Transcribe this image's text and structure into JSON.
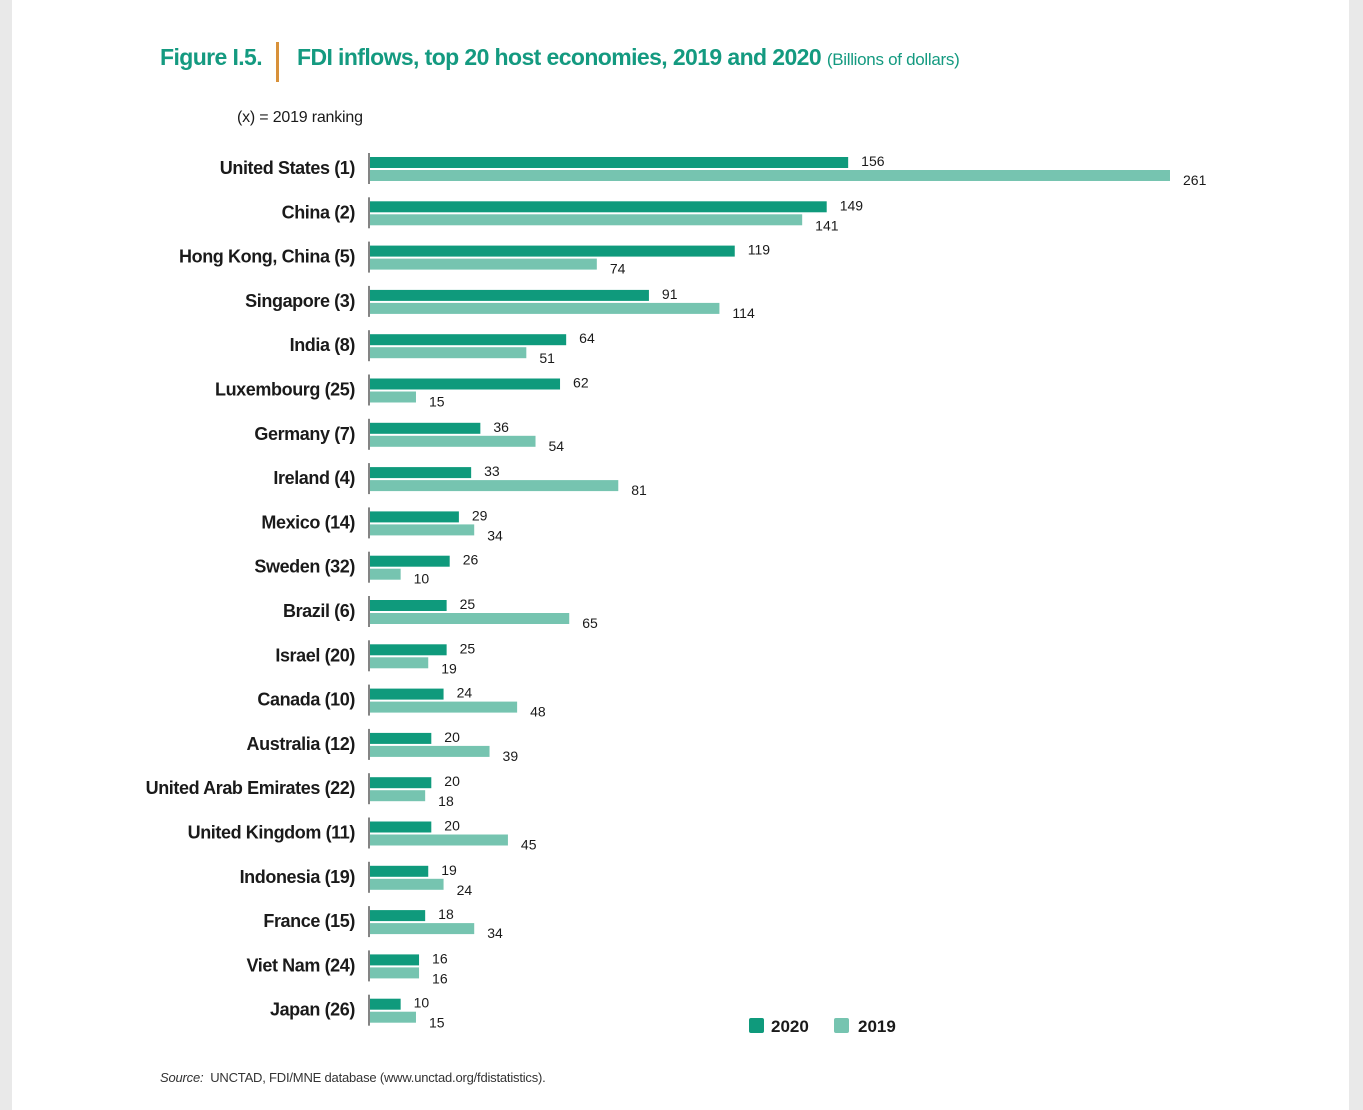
{
  "figure_label": "Figure I.5.",
  "title": "FDI inflows, top 20 host economies, 2019 and 2020",
  "unit": "(Billions of dollars)",
  "ranking_note": "(x) = 2019  ranking",
  "source_label": "Source:",
  "source_text": "UNCTAD, FDI/MNE database (www.unctad.org/fdistatistics).",
  "colors": {
    "series_2020": "#0f9a7c",
    "series_2019": "#76c4b0",
    "title": "#149a80",
    "separator": "#d8913a"
  },
  "chart_data": {
    "type": "bar",
    "orientation": "horizontal",
    "title": "FDI inflows, top 20 host economies, 2019 and 2020",
    "xlabel": "Billions of dollars",
    "ylabel": "",
    "xlim": [
      0,
      261
    ],
    "grid": false,
    "legend_position": "bottom-right",
    "categories": [
      "United States (1)",
      "China (2)",
      "Hong Kong, China (5)",
      "Singapore (3)",
      "India (8)",
      "Luxembourg (25)",
      "Germany (7)",
      "Ireland (4)",
      "Mexico (14)",
      "Sweden (32)",
      "Brazil (6)",
      "Israel (20)",
      "Canada (10)",
      "Australia (12)",
      "United Arab Emirates (22)",
      "United Kingdom (11)",
      "Indonesia (19)",
      "France (15)",
      "Viet Nam (24)",
      "Japan (26)"
    ],
    "series": [
      {
        "name": "2020",
        "values": [
          156,
          149,
          119,
          91,
          64,
          62,
          36,
          33,
          29,
          26,
          25,
          25,
          24,
          20,
          20,
          20,
          19,
          18,
          16,
          10
        ]
      },
      {
        "name": "2019",
        "values": [
          261,
          141,
          74,
          114,
          51,
          15,
          54,
          81,
          34,
          10,
          65,
          19,
          48,
          39,
          18,
          45,
          24,
          34,
          16,
          15
        ]
      }
    ]
  }
}
